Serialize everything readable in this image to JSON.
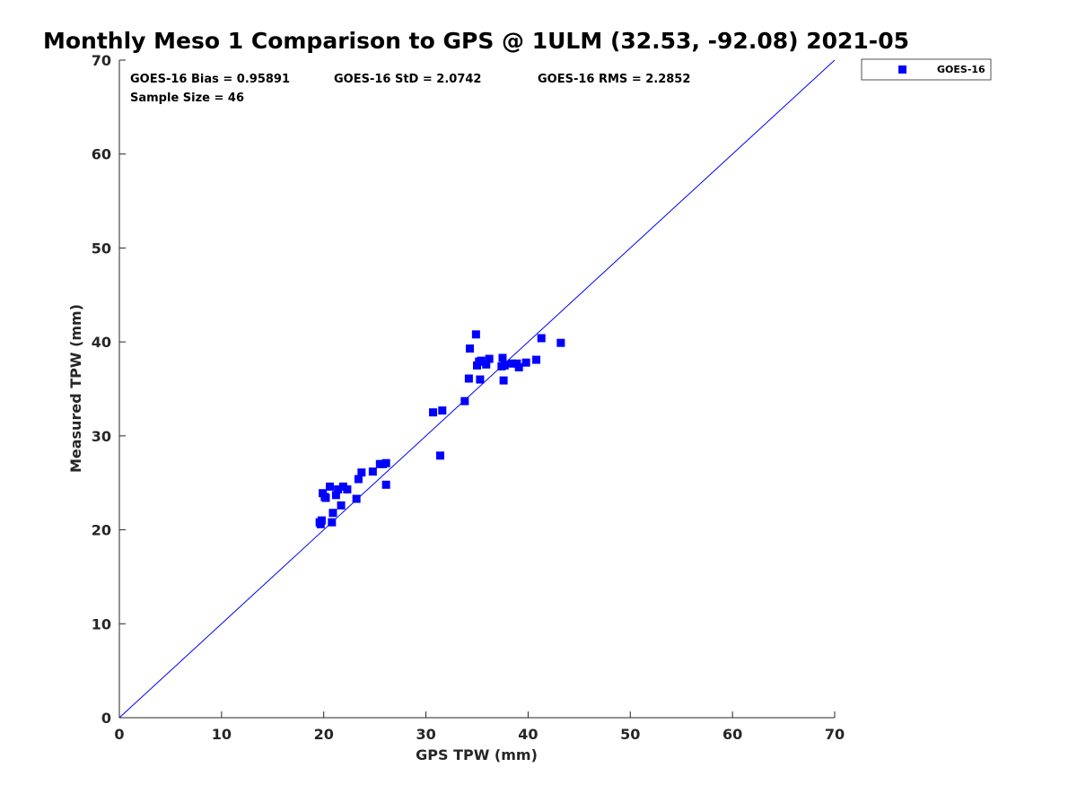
{
  "chart_data": {
    "type": "scatter",
    "title": "Monthly Meso 1 Comparison to GPS @ 1ULM (32.53, -92.08) 2021-05",
    "xlabel": "GPS TPW (mm)",
    "ylabel": "Measured TPW (mm)",
    "xlim": [
      0,
      70
    ],
    "ylim": [
      0,
      70
    ],
    "xticks": [
      0,
      10,
      20,
      30,
      40,
      50,
      60,
      70
    ],
    "yticks": [
      0,
      10,
      20,
      30,
      40,
      50,
      60,
      70
    ],
    "grid": false,
    "legend_position": "top-right",
    "reference_line": {
      "from": [
        0,
        0
      ],
      "to": [
        70,
        70
      ],
      "color": "#0000ff"
    },
    "stats": {
      "bias": "GOES-16 Bias = 0.95891",
      "std": "GOES-16 StD = 2.0742",
      "rms": "GOES-16 RMS = 2.2852",
      "sample": "Sample Size = 46"
    },
    "series": [
      {
        "name": "GOES-16",
        "color": "#0000ff",
        "marker": "square",
        "x": [
          19.6,
          19.8,
          19.7,
          20.1,
          19.9,
          20.2,
          20.6,
          20.9,
          20.8,
          21.2,
          21.4,
          21.7,
          21.9,
          22.3,
          23.2,
          23.4,
          23.7,
          24.8,
          25.5,
          25.8,
          26.1,
          26.1,
          30.7,
          31.4,
          31.6,
          33.8,
          34.2,
          34.3,
          34.9,
          35.0,
          35.3,
          35.4,
          35.9,
          36.2,
          37.5,
          37.7,
          37.6,
          38.4,
          38.9,
          39.1,
          39.8,
          40.8,
          41.3,
          43.2,
          35.2,
          37.4
        ],
        "y": [
          20.8,
          21.0,
          20.6,
          23.5,
          23.9,
          23.4,
          24.6,
          21.8,
          20.8,
          23.7,
          24.3,
          22.6,
          24.6,
          24.3,
          23.3,
          25.4,
          26.1,
          26.2,
          27.0,
          27.0,
          27.1,
          24.8,
          32.5,
          27.9,
          32.7,
          33.7,
          36.1,
          39.3,
          40.8,
          37.5,
          36.0,
          38.0,
          37.6,
          38.2,
          38.3,
          37.5,
          35.9,
          37.7,
          37.7,
          37.3,
          37.8,
          38.1,
          40.4,
          39.9,
          37.9,
          37.4
        ]
      }
    ]
  }
}
